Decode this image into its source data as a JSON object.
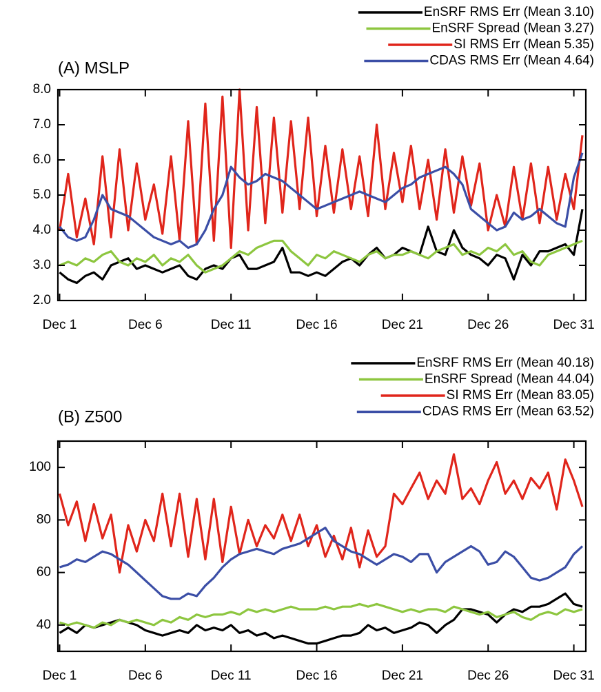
{
  "chart_data": [
    {
      "type": "line",
      "title": "(A) MSLP",
      "x": [
        1,
        1.5,
        2,
        2.5,
        3,
        3.5,
        4,
        4.5,
        5,
        5.5,
        6,
        6.5,
        7,
        7.5,
        8,
        8.5,
        9,
        9.5,
        10,
        10.5,
        11,
        11.5,
        12,
        12.5,
        13,
        13.5,
        14,
        14.5,
        15,
        15.5,
        16,
        16.5,
        17,
        17.5,
        18,
        18.5,
        19,
        19.5,
        20,
        20.5,
        21,
        21.5,
        22,
        22.5,
        23,
        23.5,
        24,
        24.5,
        25,
        25.5,
        26,
        26.5,
        27,
        27.5,
        28,
        28.5,
        29,
        29.5,
        30,
        30.5,
        31,
        31.5
      ],
      "xlim": [
        0.9,
        31.7
      ],
      "xticks": [
        {
          "value": 1,
          "label": "Dec 1"
        },
        {
          "value": 6,
          "label": "Dec 6"
        },
        {
          "value": 11,
          "label": "Dec 11"
        },
        {
          "value": 16,
          "label": "Dec 16"
        },
        {
          "value": 21,
          "label": "Dec 21"
        },
        {
          "value": 26,
          "label": "Dec 26"
        },
        {
          "value": 31,
          "label": "Dec 31"
        }
      ],
      "ylim": [
        2,
        8
      ],
      "yticks": [
        {
          "value": 2,
          "label": "2.0"
        },
        {
          "value": 3,
          "label": "3.0"
        },
        {
          "value": 4,
          "label": "4.0"
        },
        {
          "value": 5,
          "label": "5.0"
        },
        {
          "value": 6,
          "label": "6.0"
        },
        {
          "value": 7,
          "label": "7.0"
        },
        {
          "value": 8,
          "label": "8.0"
        }
      ],
      "series": [
        {
          "name": "EnSRF RMS Err (Mean 3.10)",
          "color": "#000000",
          "values": [
            2.8,
            2.6,
            2.5,
            2.7,
            2.8,
            2.6,
            3.0,
            3.1,
            3.2,
            2.9,
            3.0,
            2.9,
            2.8,
            2.9,
            3.0,
            2.7,
            2.6,
            2.9,
            3.0,
            2.9,
            3.2,
            3.3,
            2.9,
            2.9,
            3.0,
            3.1,
            3.5,
            2.8,
            2.8,
            2.7,
            2.8,
            2.7,
            2.9,
            3.1,
            3.2,
            3.0,
            3.3,
            3.5,
            3.2,
            3.3,
            3.5,
            3.4,
            3.3,
            4.1,
            3.4,
            3.3,
            4.0,
            3.5,
            3.3,
            3.2,
            3.0,
            3.3,
            3.2,
            2.6,
            3.3,
            3.0,
            3.4,
            3.4,
            3.5,
            3.6,
            3.3,
            4.6
          ]
        },
        {
          "name": "EnSRF Spread (Mean 3.27)",
          "color": "#8dc63f",
          "values": [
            3.0,
            3.1,
            3.0,
            3.2,
            3.1,
            3.3,
            3.4,
            3.1,
            3.0,
            3.2,
            3.1,
            3.3,
            3.0,
            3.2,
            3.1,
            3.3,
            3.0,
            2.8,
            2.9,
            3.0,
            3.2,
            3.4,
            3.3,
            3.5,
            3.6,
            3.7,
            3.7,
            3.4,
            3.2,
            3.0,
            3.3,
            3.2,
            3.4,
            3.3,
            3.2,
            3.1,
            3.3,
            3.4,
            3.2,
            3.3,
            3.3,
            3.4,
            3.3,
            3.2,
            3.4,
            3.5,
            3.6,
            3.3,
            3.4,
            3.3,
            3.5,
            3.4,
            3.6,
            3.3,
            3.4,
            3.1,
            3.0,
            3.3,
            3.4,
            3.5,
            3.6,
            3.7
          ]
        },
        {
          "name": "SI RMS Err (Mean 5.35)",
          "color": "#e0251b",
          "values": [
            4.0,
            5.6,
            3.8,
            4.9,
            3.6,
            6.1,
            3.8,
            6.3,
            4.0,
            5.9,
            4.3,
            5.3,
            3.9,
            6.1,
            3.7,
            7.1,
            3.6,
            7.6,
            3.7,
            7.8,
            3.5,
            8.0,
            4.0,
            7.5,
            4.2,
            7.2,
            4.5,
            7.1,
            4.6,
            7.2,
            4.4,
            6.4,
            4.5,
            6.3,
            4.6,
            6.1,
            4.4,
            7.0,
            4.6,
            6.2,
            4.8,
            6.4,
            4.6,
            6.0,
            4.3,
            6.3,
            4.5,
            6.1,
            4.7,
            5.9,
            4.0,
            5.0,
            4.1,
            5.8,
            4.3,
            5.9,
            4.2,
            5.8,
            4.3,
            5.6,
            4.6,
            6.7
          ]
        },
        {
          "name": "CDAS RMS Err (Mean 4.64)",
          "color": "#3b4ea6",
          "values": [
            4.1,
            3.8,
            3.7,
            3.8,
            4.3,
            5.0,
            4.6,
            4.5,
            4.4,
            4.2,
            4.0,
            3.8,
            3.7,
            3.6,
            3.7,
            3.5,
            3.6,
            4.0,
            4.6,
            5.0,
            5.8,
            5.5,
            5.3,
            5.4,
            5.6,
            5.5,
            5.4,
            5.2,
            5.0,
            4.8,
            4.6,
            4.7,
            4.8,
            4.9,
            5.0,
            5.1,
            5.0,
            4.9,
            4.8,
            5.0,
            5.2,
            5.3,
            5.5,
            5.6,
            5.7,
            5.8,
            5.6,
            5.3,
            4.6,
            4.4,
            4.2,
            4.0,
            4.1,
            4.5,
            4.3,
            4.4,
            4.6,
            4.4,
            4.2,
            4.1,
            5.5,
            6.2
          ]
        }
      ]
    },
    {
      "type": "line",
      "title": "(B) Z500",
      "x": [
        1,
        1.5,
        2,
        2.5,
        3,
        3.5,
        4,
        4.5,
        5,
        5.5,
        6,
        6.5,
        7,
        7.5,
        8,
        8.5,
        9,
        9.5,
        10,
        10.5,
        11,
        11.5,
        12,
        12.5,
        13,
        13.5,
        14,
        14.5,
        15,
        15.5,
        16,
        16.5,
        17,
        17.5,
        18,
        18.5,
        19,
        19.5,
        20,
        20.5,
        21,
        21.5,
        22,
        22.5,
        23,
        23.5,
        24,
        24.5,
        25,
        25.5,
        26,
        26.5,
        27,
        27.5,
        28,
        28.5,
        29,
        29.5,
        30,
        30.5,
        31,
        31.5
      ],
      "xlim": [
        0.9,
        31.7
      ],
      "xticks": [
        {
          "value": 1,
          "label": "Dec 1"
        },
        {
          "value": 6,
          "label": "Dec 6"
        },
        {
          "value": 11,
          "label": "Dec 11"
        },
        {
          "value": 16,
          "label": "Dec 16"
        },
        {
          "value": 21,
          "label": "Dec 21"
        },
        {
          "value": 26,
          "label": "Dec 26"
        },
        {
          "value": 31,
          "label": "Dec 31"
        }
      ],
      "ylim": [
        30,
        110
      ],
      "yticks": [
        40,
        60,
        80,
        100
      ],
      "series": [
        {
          "name": "EnSRF RMS Err (Mean 40.18)",
          "color": "#000000",
          "values": [
            37,
            39,
            37,
            40,
            39,
            40,
            41,
            42,
            41,
            40,
            38,
            37,
            36,
            37,
            38,
            37,
            40,
            38,
            39,
            38,
            40,
            37,
            38,
            36,
            37,
            35,
            36,
            35,
            34,
            33,
            33,
            34,
            35,
            36,
            36,
            37,
            40,
            38,
            39,
            37,
            38,
            39,
            41,
            40,
            37,
            40,
            42,
            46,
            46,
            45,
            44,
            41,
            44,
            46,
            45,
            47,
            47,
            48,
            50,
            52,
            48,
            47
          ]
        },
        {
          "name": "EnSRF Spread (Mean 44.04)",
          "color": "#8dc63f",
          "values": [
            41,
            40,
            41,
            40,
            39,
            41,
            40,
            42,
            41,
            42,
            41,
            40,
            42,
            41,
            43,
            42,
            44,
            43,
            44,
            44,
            45,
            44,
            46,
            45,
            46,
            45,
            46,
            47,
            46,
            46,
            46,
            47,
            46,
            47,
            47,
            48,
            47,
            48,
            47,
            46,
            45,
            46,
            45,
            46,
            46,
            45,
            47,
            46,
            45,
            44,
            45,
            43,
            44,
            45,
            43,
            42,
            44,
            45,
            44,
            46,
            45,
            46
          ]
        },
        {
          "name": "SI RMS Err (Mean 83.05)",
          "color": "#e0251b",
          "values": [
            90,
            78,
            87,
            72,
            86,
            73,
            82,
            60,
            78,
            68,
            80,
            72,
            90,
            70,
            90,
            66,
            88,
            65,
            88,
            64,
            85,
            67,
            80,
            70,
            78,
            73,
            82,
            72,
            82,
            70,
            78,
            66,
            74,
            65,
            77,
            62,
            76,
            66,
            70,
            90,
            86,
            92,
            98,
            88,
            95,
            90,
            105,
            88,
            92,
            86,
            95,
            102,
            90,
            95,
            88,
            96,
            92,
            98,
            84,
            103,
            95,
            85
          ]
        },
        {
          "name": "CDAS RMS Err (Mean 63.52)",
          "color": "#3b4ea6",
          "values": [
            62,
            63,
            65,
            64,
            66,
            68,
            67,
            65,
            63,
            60,
            57,
            54,
            51,
            50,
            50,
            52,
            51,
            55,
            58,
            62,
            65,
            67,
            68,
            69,
            68,
            67,
            69,
            70,
            71,
            73,
            75,
            77,
            72,
            70,
            68,
            67,
            65,
            63,
            65,
            67,
            66,
            64,
            67,
            67,
            60,
            64,
            66,
            68,
            70,
            68,
            63,
            64,
            68,
            66,
            62,
            58,
            57,
            58,
            60,
            62,
            67,
            70
          ]
        }
      ]
    }
  ]
}
